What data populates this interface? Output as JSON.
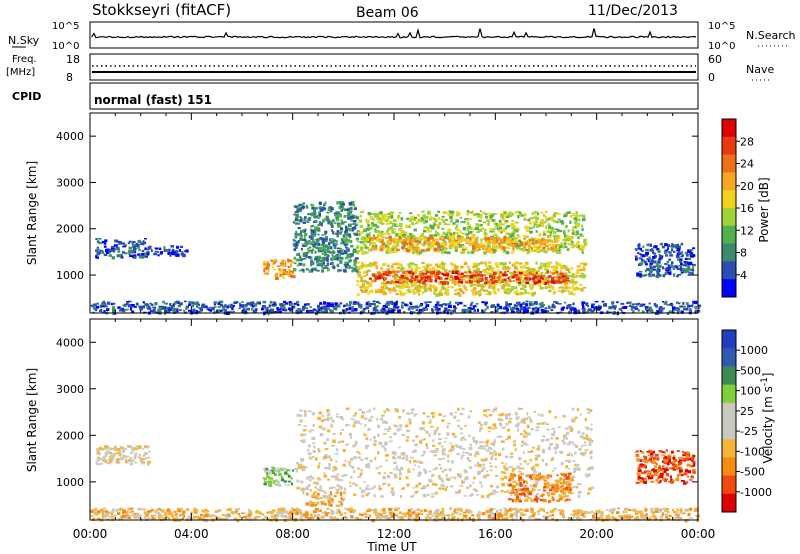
{
  "header": {
    "station": "Stokkseyri (fitACF)",
    "beam": "Beam 06",
    "date": "11/Dec/2013"
  },
  "status_panel": {
    "nsky_label": "N.Sky",
    "nsky_ticks": [
      "10^5",
      "10^0"
    ],
    "nsearch_label": "N.Search",
    "nsearch_ticks": [
      "10^5",
      "10^0"
    ],
    "freq_label": "Freq.",
    "freq_unit": "[MHz]",
    "freq_ticks": [
      "18",
      "8"
    ],
    "nave_label": "Nave",
    "nave_ticks": [
      "60",
      "0"
    ],
    "cpid_label": "CPID",
    "cpid_value": "normal (fast) 151"
  },
  "colors": {
    "power_scale": [
      "#0000ff",
      "#2a4fb0",
      "#3b8a6e",
      "#4fb04f",
      "#9ed236",
      "#f2d21a",
      "#f5a623",
      "#f07018",
      "#e83a12",
      "#e00000"
    ],
    "velocity_scale": [
      "#e00000",
      "#f04a10",
      "#f78c14",
      "#f5b53a",
      "#c9c9c0",
      "#c9c9c0",
      "#7fd03a",
      "#3c8c50",
      "#2e5bb0",
      "#1f3fbf"
    ]
  },
  "chart_data": [
    {
      "type": "heatmap",
      "quantity": "power",
      "ylabel": "Slant Range [km]",
      "ylim": [
        180,
        4500
      ],
      "yticks": [
        "1000",
        "2000",
        "3000",
        "4000"
      ],
      "colorbar_label": "Power [dB]",
      "colorbar_ticks": [
        "4",
        "8",
        "12",
        "16",
        "20",
        "24",
        "28"
      ],
      "colorbar_range": [
        0,
        32
      ],
      "x_range_hours": [
        0,
        24
      ],
      "xticks": [
        "00:00",
        "04:00",
        "08:00",
        "12:00",
        "16:00",
        "20:00",
        "00:00"
      ],
      "xlabel": "",
      "regions": [
        {
          "t0": 0.2,
          "t1": 2.3,
          "r0": 1400,
          "r1": 1800,
          "level": 6
        },
        {
          "t0": 2.2,
          "t1": 3.8,
          "r0": 1450,
          "r1": 1650,
          "level": 4
        },
        {
          "t0": 6.8,
          "t1": 8.0,
          "r0": 950,
          "r1": 1350,
          "level": 20
        },
        {
          "t0": 8.0,
          "t1": 10.5,
          "r0": 1100,
          "r1": 2600,
          "level": 7
        },
        {
          "t0": 10.5,
          "t1": 19.5,
          "r0": 1500,
          "r1": 2400,
          "level": 13
        },
        {
          "t0": 11.0,
          "t1": 18.5,
          "r0": 1550,
          "r1": 1850,
          "level": 22
        },
        {
          "t0": 10.5,
          "t1": 19.5,
          "r0": 600,
          "r1": 1300,
          "level": 16
        },
        {
          "t0": 11.0,
          "t1": 18.8,
          "r0": 850,
          "r1": 1100,
          "level": 27
        },
        {
          "t0": 21.5,
          "t1": 23.8,
          "r0": 1000,
          "r1": 1700,
          "level": 6
        },
        {
          "t0": 0.0,
          "t1": 24.0,
          "r0": 200,
          "r1": 450,
          "level": 5
        }
      ]
    },
    {
      "type": "heatmap",
      "quantity": "velocity",
      "ylabel": "Slant Range [km]",
      "ylim": [
        180,
        4500
      ],
      "yticks": [
        "1000",
        "2000",
        "3000",
        "4000"
      ],
      "colorbar_label": "Velocity [m s^-1]",
      "colorbar_ticks": [
        "1000",
        "500",
        "100",
        "25",
        "-25",
        "-100",
        "-500",
        "-1000"
      ],
      "x_range_hours": [
        0,
        24
      ],
      "xticks": [
        "00:00",
        "04:00",
        "08:00",
        "12:00",
        "16:00",
        "20:00",
        "00:00"
      ],
      "xlabel": "Time UT",
      "regions": [
        {
          "t0": 0.2,
          "t1": 2.3,
          "r0": 1400,
          "r1": 1800,
          "level": 4
        },
        {
          "t0": 6.8,
          "t1": 8.0,
          "r0": 950,
          "r1": 1350,
          "level": 6
        },
        {
          "t0": 8.0,
          "t1": 19.8,
          "r0": 700,
          "r1": 2600,
          "level": 4
        },
        {
          "t0": 16.5,
          "t1": 19.0,
          "r0": 600,
          "r1": 1200,
          "level": 2
        },
        {
          "t0": 8.5,
          "t1": 10.0,
          "r0": 500,
          "r1": 800,
          "level": 3
        },
        {
          "t0": 21.5,
          "t1": 23.8,
          "r0": 1000,
          "r1": 1700,
          "level": 1
        },
        {
          "t0": 0.0,
          "t1": 24.0,
          "r0": 200,
          "r1": 450,
          "level": 3
        }
      ]
    }
  ]
}
